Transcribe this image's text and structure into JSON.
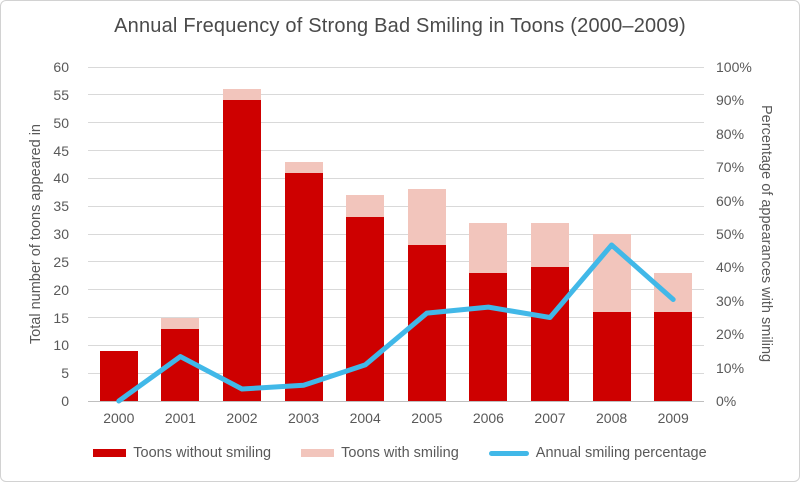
{
  "chart_data": {
    "type": "bar",
    "subtype": "stacked-column-with-line-overlay",
    "title": "Annual Frequency of Strong Bad Smiling in Toons (2000–2009)",
    "categories": [
      "2000",
      "2001",
      "2002",
      "2003",
      "2004",
      "2005",
      "2006",
      "2007",
      "2008",
      "2009"
    ],
    "series": [
      {
        "name": "Toons without smiling",
        "type": "bar",
        "axis": "left",
        "color": "#ce0000",
        "values": [
          9,
          13,
          54,
          41,
          33,
          28,
          23,
          24,
          16,
          16
        ]
      },
      {
        "name": "Toons with smiling",
        "type": "bar",
        "axis": "left",
        "color": "#f2c5bc",
        "values": [
          0,
          2,
          2,
          2,
          4,
          10,
          9,
          8,
          14,
          7
        ]
      },
      {
        "name": "Annual smiling percentage",
        "type": "line",
        "axis": "right",
        "color": "#41b8e8",
        "values": [
          0,
          13.3,
          3.6,
          4.7,
          10.8,
          26.3,
          28.1,
          25,
          46.7,
          30.4
        ]
      }
    ],
    "left_axis": {
      "label": "Total number of toons appeared in",
      "min": 0,
      "max": 60,
      "tick_step": 5,
      "ticks": [
        "0",
        "5",
        "10",
        "15",
        "20",
        "25",
        "30",
        "35",
        "40",
        "45",
        "50",
        "55",
        "60"
      ]
    },
    "right_axis": {
      "label": "Percentage of appearances with smiling",
      "min": 0,
      "max": 100,
      "tick_step": 10,
      "ticks": [
        "0%",
        "10%",
        "20%",
        "30%",
        "40%",
        "50%",
        "60%",
        "70%",
        "80%",
        "90%",
        "100%"
      ]
    },
    "grid": true,
    "legend_position": "bottom",
    "colors": {
      "grid": "#d9d9d9",
      "baseline": "#bfbfbf",
      "tick_text": "#595959",
      "title_text": "#4a4a4a"
    }
  }
}
